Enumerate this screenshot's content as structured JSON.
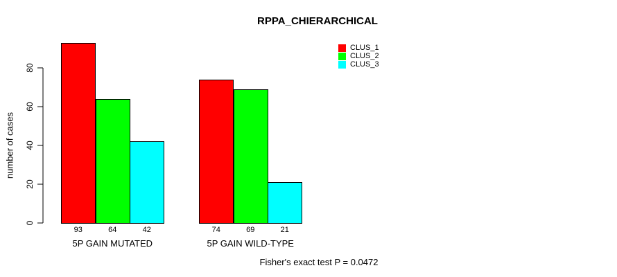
{
  "chart_data": {
    "type": "bar",
    "title": "RPPA_CHIERARCHICAL",
    "ylabel": "number of cases",
    "xlabel": "",
    "categories": [
      "5P GAIN MUTATED",
      "5P GAIN WILD-TYPE"
    ],
    "series": [
      {
        "name": "CLUS_1",
        "color": "#ff0000",
        "values": [
          93,
          74
        ]
      },
      {
        "name": "CLUS_2",
        "color": "#00ff00",
        "values": [
          64,
          69
        ]
      },
      {
        "name": "CLUS_3",
        "color": "#00ffff",
        "values": [
          42,
          21
        ]
      }
    ],
    "bar_value_labels": [
      [
        93,
        64,
        42
      ],
      [
        74,
        69,
        21
      ]
    ],
    "yticks": [
      0,
      20,
      40,
      60,
      80
    ],
    "ylim": [
      0,
      80
    ],
    "grid": false,
    "legend": {
      "position": "topright",
      "entries": [
        "CLUS_1",
        "CLUS_2",
        "CLUS_3"
      ]
    },
    "annotation": "Fisher's exact test P = 0.0472"
  },
  "colors": {
    "background": "#ffffff",
    "axis": "#000000",
    "text": "#000000"
  }
}
